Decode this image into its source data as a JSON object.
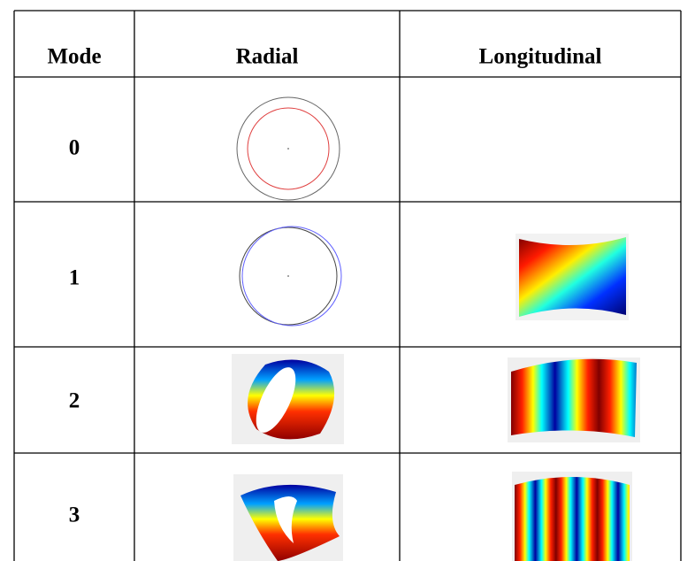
{
  "table": {
    "header": [
      "Mode",
      "Radial",
      "Longitudinal"
    ],
    "rows": [
      [
        "0"
      ],
      [
        "1"
      ],
      [
        "2"
      ],
      [
        "3"
      ]
    ]
  }
}
